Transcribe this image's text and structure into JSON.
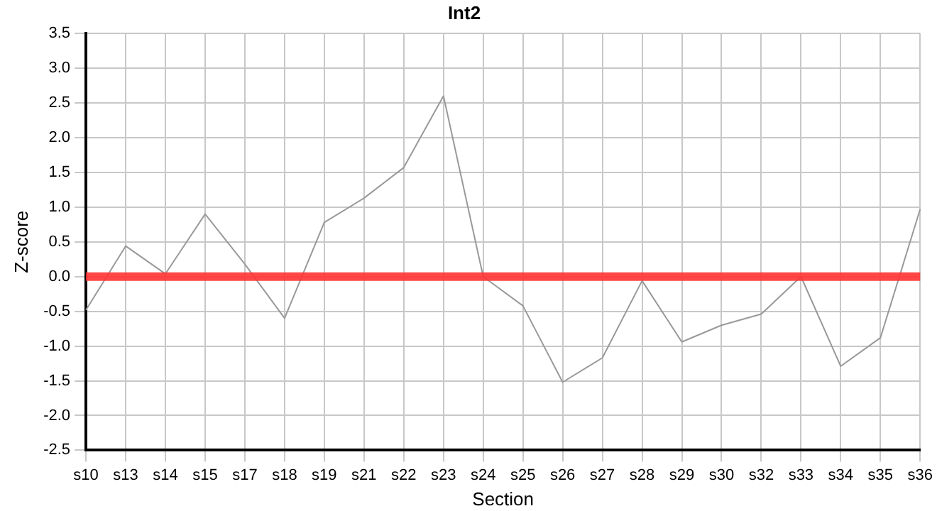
{
  "chart_data": {
    "type": "line",
    "title": "Int2",
    "xlabel": "Section",
    "ylabel": "Z-score",
    "categories": [
      "s10",
      "s13",
      "s14",
      "s15",
      "s17",
      "s18",
      "s19",
      "s21",
      "s22",
      "s23",
      "s24",
      "s25",
      "s26",
      "s27",
      "s28",
      "s29",
      "s30",
      "s32",
      "s33",
      "s34",
      "s35",
      "s36"
    ],
    "series": [
      {
        "color": "#999999",
        "values": [
          -0.48,
          0.44,
          0.04,
          0.9,
          0.18,
          -0.6,
          0.78,
          1.13,
          1.57,
          2.6,
          0.0,
          -0.42,
          -1.52,
          -1.17,
          -0.06,
          -0.94,
          -0.7,
          -0.54,
          0.0,
          -1.29,
          -0.88,
          0.97
        ]
      }
    ],
    "ylim": [
      -2.5,
      3.5
    ],
    "yticks": [
      {
        "value": -2.5,
        "label": "-2.5"
      },
      {
        "value": -2,
        "label": "-2.0"
      },
      {
        "value": -1.5,
        "label": "-1.5"
      },
      {
        "value": -1,
        "label": "-1.0"
      },
      {
        "value": -0.5,
        "label": "-0.5"
      },
      {
        "value": 0,
        "label": "0.0"
      },
      {
        "value": 0.5,
        "label": "0.5"
      },
      {
        "value": 1,
        "label": "1.0"
      },
      {
        "value": 1.5,
        "label": "1.5"
      },
      {
        "value": 2,
        "label": "2.0"
      },
      {
        "value": 2.5,
        "label": "2.5"
      },
      {
        "value": 3,
        "label": "3.0"
      },
      {
        "value": 3.5,
        "label": "3.5"
      }
    ],
    "ref_lines": [
      {
        "axis": "y",
        "value": 0,
        "color": "#ff3333"
      }
    ],
    "grid": true,
    "legend": false,
    "marker": "none",
    "line_style": "solid"
  }
}
